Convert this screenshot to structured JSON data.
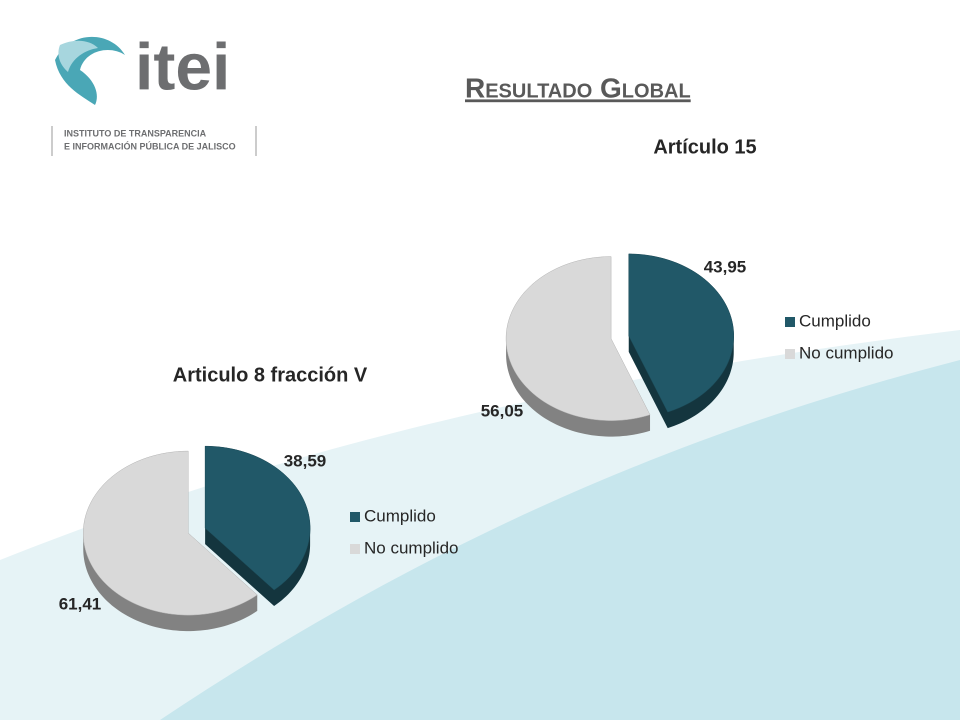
{
  "logo": {
    "name": "itei",
    "line1": "INSTITUTO DE TRANSPARENCIA",
    "line2": "E INFORMACIÓN PÚBLICA DE JALISCO"
  },
  "title": "Resultado Global",
  "chart_data": [
    {
      "type": "pie",
      "title": "Artículo 15",
      "categories": [
        "Cumplido",
        "No cumplido"
      ],
      "values": [
        43.95,
        56.05
      ],
      "value_labels": [
        "43,95",
        "56,05"
      ],
      "colors": [
        "#215868",
        "#d9d9d9"
      ],
      "legend": "right"
    },
    {
      "type": "pie",
      "title": "Articulo 8 fracción V",
      "categories": [
        "Cumplido",
        "No cumplido"
      ],
      "values": [
        38.59,
        61.41
      ],
      "value_labels": [
        "38,59",
        "61,41"
      ],
      "colors": [
        "#215868",
        "#d9d9d9"
      ],
      "legend": "right"
    }
  ]
}
